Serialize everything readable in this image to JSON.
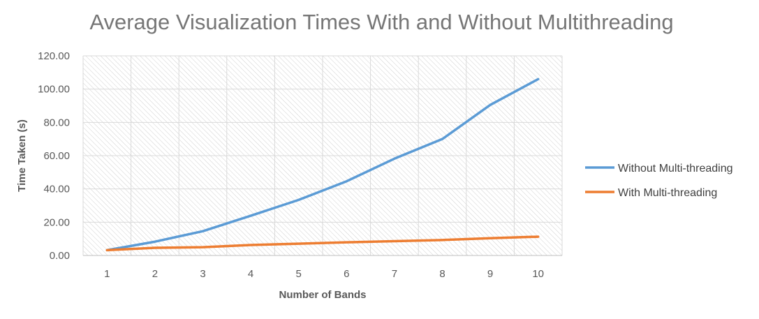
{
  "chart_data": {
    "type": "line",
    "title": "Average Visualization Times With and Without Multithreading",
    "xlabel": "Number of Bands",
    "ylabel": "Time Taken (s)",
    "categories": [
      "1",
      "2",
      "3",
      "4",
      "5",
      "6",
      "7",
      "8",
      "9",
      "10"
    ],
    "ylim": [
      0,
      120
    ],
    "yticks": [
      "0.00",
      "20.00",
      "40.00",
      "60.00",
      "80.00",
      "100.00",
      "120.00"
    ],
    "grid": true,
    "legend_position": "right",
    "series": [
      {
        "name": "Without Multi-threading",
        "color": "#5b9bd5",
        "values": [
          3.2,
          8.3,
          14.6,
          23.9,
          33.4,
          44.6,
          58.2,
          70.0,
          90.5,
          106.0
        ]
      },
      {
        "name": "With Multi-threading",
        "color": "#ed7d31",
        "values": [
          3.2,
          4.6,
          5.0,
          6.3,
          7.1,
          7.9,
          8.6,
          9.3,
          10.4,
          11.3
        ]
      }
    ]
  }
}
